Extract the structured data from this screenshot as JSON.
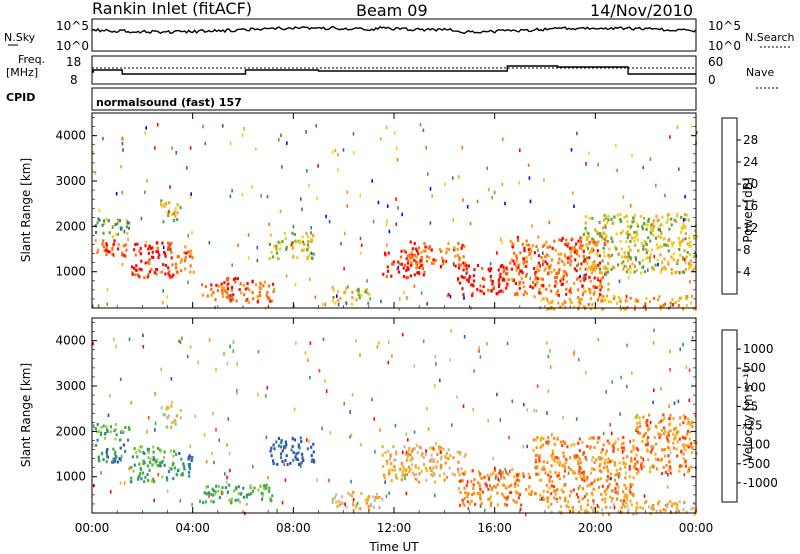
{
  "header": {
    "station": "Rankin Inlet (fitACF)",
    "beam": "Beam 09",
    "date": "14/Nov/2010"
  },
  "status_panels": {
    "nsky_label": "N.Sky",
    "nsky_ticks": [
      "10^5",
      "10^0"
    ],
    "nsearch_label": "N.Search",
    "nsearch_ticks": [
      "10^5",
      "10^0"
    ],
    "freq_label_1": "Freq.",
    "freq_label_2": "[MHz]",
    "freq_ticks": [
      "18",
      "8"
    ],
    "nave_label": "Nave",
    "nave_ticks": [
      "60",
      "0"
    ],
    "cpid_label": "CPID",
    "cpid_value": "normalsound (fast) 157"
  },
  "chart_data": [
    {
      "type": "heatmap",
      "name": "power",
      "ylabel": "Slant Range [km]",
      "yticks": [
        1000,
        2000,
        3000,
        4000
      ],
      "ylim": [
        200,
        4500
      ],
      "xticks": [
        "00:00",
        "04:00",
        "08:00",
        "12:00",
        "16:00",
        "20:00",
        "00:00"
      ],
      "xlim_hours": [
        0,
        24
      ],
      "colorbar": {
        "label": "Power [dB]",
        "ticks": [
          "4",
          "8",
          "12",
          "16",
          "20",
          "24",
          "28"
        ],
        "colors": [
          "#0000ff",
          "#2f5fb0",
          "#3e7f63",
          "#5aa33f",
          "#e8d020",
          "#f5a01a",
          "#ff6a0a",
          "#ff0000"
        ]
      },
      "regions": [
        {
          "t": [
            0.1,
            1.4
          ],
          "r": [
            1350,
            1750
          ],
          "level": 6
        },
        {
          "t": [
            0.1,
            1.5
          ],
          "r": [
            1800,
            2200
          ],
          "level": 3
        },
        {
          "t": [
            1.5,
            3.2
          ],
          "r": [
            900,
            1700
          ],
          "level": 7
        },
        {
          "t": [
            2.7,
            3.5
          ],
          "r": [
            2100,
            2600
          ],
          "level": 4
        },
        {
          "t": [
            3.2,
            4.0
          ],
          "r": [
            1000,
            1600
          ],
          "level": 6
        },
        {
          "t": [
            4.3,
            5.6
          ],
          "r": [
            400,
            800
          ],
          "level": 6
        },
        {
          "t": [
            5.3,
            7.2
          ],
          "r": [
            350,
            900
          ],
          "level": 6
        },
        {
          "t": [
            7.0,
            8.8
          ],
          "r": [
            1300,
            1900
          ],
          "level": 4
        },
        {
          "t": [
            9.5,
            11.0
          ],
          "r": [
            300,
            700
          ],
          "level": 4
        },
        {
          "t": [
            11.5,
            13.2
          ],
          "r": [
            900,
            1500
          ],
          "level": 7
        },
        {
          "t": [
            12.6,
            14.8
          ],
          "r": [
            1100,
            1700
          ],
          "level": 6
        },
        {
          "t": [
            14.5,
            16.5
          ],
          "r": [
            500,
            1200
          ],
          "level": 7
        },
        {
          "t": [
            16.5,
            20.5
          ],
          "r": [
            500,
            1800
          ],
          "level": 6
        },
        {
          "t": [
            17.5,
            24.0
          ],
          "r": [
            200,
            500
          ],
          "level": 5
        },
        {
          "t": [
            19.5,
            24.0
          ],
          "r": [
            1000,
            2300
          ],
          "level": 4
        }
      ]
    },
    {
      "type": "heatmap",
      "name": "velocity",
      "ylabel": "Slant Range [km]",
      "yticks": [
        1000,
        2000,
        3000,
        4000
      ],
      "ylim": [
        200,
        4500
      ],
      "xticks": [
        "00:00",
        "04:00",
        "08:00",
        "12:00",
        "16:00",
        "20:00",
        "00:00"
      ],
      "xlim_hours": [
        0,
        24
      ],
      "xlabel": "Time UT",
      "colorbar": {
        "label": "Velocity [m s⁻¹]",
        "ticks": [
          "1000",
          "500",
          "100",
          "25",
          "-25",
          "-100",
          "-500",
          "-1000"
        ],
        "colors": [
          "#2b4fb8",
          "#2e8a8a",
          "#3fae3f",
          "#9ad04a",
          "#bbbbbb",
          "#f5b020",
          "#ff8a10",
          "#ff3d10",
          "#ff0000"
        ]
      },
      "regions": [
        {
          "t": [
            0.1,
            1.4
          ],
          "r": [
            1350,
            1750
          ],
          "level": 1
        },
        {
          "t": [
            0.1,
            1.5
          ],
          "r": [
            1800,
            2200
          ],
          "level": 2
        },
        {
          "t": [
            1.5,
            3.2
          ],
          "r": [
            900,
            1700
          ],
          "level": 2
        },
        {
          "t": [
            2.7,
            3.5
          ],
          "r": [
            2100,
            2600
          ],
          "level": 4
        },
        {
          "t": [
            3.2,
            4.0
          ],
          "r": [
            1000,
            1600
          ],
          "level": 1
        },
        {
          "t": [
            4.3,
            7.2
          ],
          "r": [
            400,
            850
          ],
          "level": 2
        },
        {
          "t": [
            7.0,
            8.8
          ],
          "r": [
            1300,
            1900
          ],
          "level": 0
        },
        {
          "t": [
            9.5,
            11.5
          ],
          "r": [
            300,
            700
          ],
          "level": 5
        },
        {
          "t": [
            11.5,
            14.8
          ],
          "r": [
            900,
            1700
          ],
          "level": 5
        },
        {
          "t": [
            14.5,
            17.5
          ],
          "r": [
            400,
            1200
          ],
          "level": 6
        },
        {
          "t": [
            17.5,
            21.5
          ],
          "r": [
            500,
            1900
          ],
          "level": 6
        },
        {
          "t": [
            18.0,
            24.0
          ],
          "r": [
            200,
            500
          ],
          "level": 5
        },
        {
          "t": [
            21.5,
            24.0
          ],
          "r": [
            1100,
            2400
          ],
          "level": 6
        }
      ]
    }
  ]
}
